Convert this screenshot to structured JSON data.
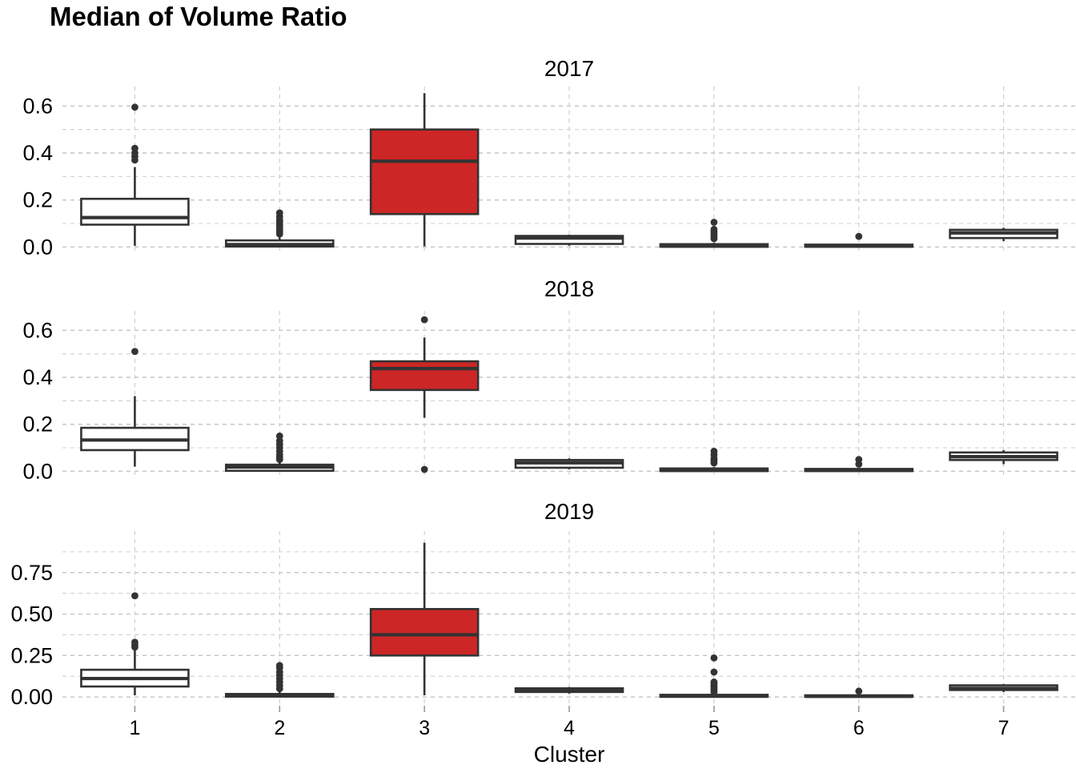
{
  "chart_data": {
    "type": "boxplot",
    "title": "Median of Volume Ratio",
    "xlabel": "Cluster",
    "ylabel": "",
    "categories": [
      "1",
      "2",
      "3",
      "4",
      "5",
      "6",
      "7"
    ],
    "facet_layout": "3 stacked panels (rows), shared x axis",
    "grid": "dashed major and minor gridlines, horizontal and vertical at cluster centers",
    "legend": "none",
    "highlight_category": "3",
    "colors": {
      "highlight_fill": "#CD2626",
      "default_fill": "#FFFFFF",
      "box_line": "#333333",
      "gridline_major": "#C3C3C3",
      "gridline_minor": "#CFCFCF",
      "axis_tick": "#999999",
      "text": "#000000"
    },
    "panels": [
      {
        "label": "2017",
        "y_tick_labels": [
          "0.0",
          "0.2",
          "0.4",
          "0.6"
        ],
        "y_tick_values": [
          0,
          0.2,
          0.4,
          0.6
        ],
        "y_minor_values": [
          0.1,
          0.3,
          0.5
        ],
        "ylim": [
          -0.033,
          0.683
        ],
        "boxes": [
          {
            "cluster": "1",
            "highlight": false,
            "low": 0.005,
            "q1": 0.095,
            "median": 0.125,
            "q3": 0.205,
            "high": 0.34,
            "outliers": [
              0.37,
              0.385,
              0.4,
              0.42,
              0.595
            ]
          },
          {
            "cluster": "2",
            "highlight": false,
            "low": 0.0,
            "q1": 0.002,
            "median": 0.01,
            "q3": 0.028,
            "high": 0.04,
            "outliers": [
              0.055,
              0.065,
              0.075,
              0.085,
              0.095,
              0.105,
              0.115,
              0.13,
              0.145
            ]
          },
          {
            "cluster": "3",
            "highlight": true,
            "low": 0.003,
            "q1": 0.14,
            "median": 0.365,
            "q3": 0.5,
            "high": 0.655,
            "outliers": []
          },
          {
            "cluster": "4",
            "highlight": false,
            "low": 0.005,
            "q1": 0.013,
            "median": 0.038,
            "q3": 0.047,
            "high": 0.052,
            "outliers": []
          },
          {
            "cluster": "5",
            "highlight": false,
            "low": 0.0,
            "q1": 0.001,
            "median": 0.004,
            "q3": 0.012,
            "high": 0.018,
            "outliers": [
              0.035,
              0.045,
              0.055,
              0.065,
              0.075,
              0.105
            ]
          },
          {
            "cluster": "6",
            "highlight": false,
            "low": 0.0,
            "q1": 0.001,
            "median": 0.004,
            "q3": 0.01,
            "high": 0.014,
            "outliers": [
              0.045
            ]
          },
          {
            "cluster": "7",
            "highlight": false,
            "low": 0.025,
            "q1": 0.038,
            "median": 0.06,
            "q3": 0.073,
            "high": 0.082,
            "outliers": []
          }
        ]
      },
      {
        "label": "2018",
        "y_tick_labels": [
          "0.0",
          "0.2",
          "0.4",
          "0.6"
        ],
        "y_tick_values": [
          0,
          0.2,
          0.4,
          0.6
        ],
        "y_minor_values": [
          0.1,
          0.3,
          0.5
        ],
        "ylim": [
          -0.033,
          0.683
        ],
        "boxes": [
          {
            "cluster": "1",
            "highlight": false,
            "low": 0.02,
            "q1": 0.09,
            "median": 0.133,
            "q3": 0.185,
            "high": 0.32,
            "outliers": [
              0.51
            ]
          },
          {
            "cluster": "2",
            "highlight": false,
            "low": 0.0,
            "q1": 0.002,
            "median": 0.018,
            "q3": 0.028,
            "high": 0.04,
            "outliers": [
              0.05,
              0.06,
              0.07,
              0.085,
              0.1,
              0.115,
              0.13,
              0.15
            ]
          },
          {
            "cluster": "3",
            "highlight": true,
            "low": 0.228,
            "q1": 0.346,
            "median": 0.437,
            "q3": 0.468,
            "high": 0.569,
            "outliers": [
              0.645,
              0.008
            ]
          },
          {
            "cluster": "4",
            "highlight": false,
            "low": 0.008,
            "q1": 0.015,
            "median": 0.036,
            "q3": 0.048,
            "high": 0.055,
            "outliers": []
          },
          {
            "cluster": "5",
            "highlight": false,
            "low": 0.0,
            "q1": 0.001,
            "median": 0.004,
            "q3": 0.012,
            "high": 0.018,
            "outliers": [
              0.035,
              0.045,
              0.055,
              0.07,
              0.085
            ]
          },
          {
            "cluster": "6",
            "highlight": false,
            "low": 0.0,
            "q1": 0.001,
            "median": 0.004,
            "q3": 0.01,
            "high": 0.014,
            "outliers": [
              0.03,
              0.05
            ]
          },
          {
            "cluster": "7",
            "highlight": false,
            "low": 0.03,
            "q1": 0.048,
            "median": 0.062,
            "q3": 0.08,
            "high": 0.09,
            "outliers": []
          }
        ]
      },
      {
        "label": "2019",
        "y_tick_labels": [
          "0.00",
          "0.25",
          "0.50",
          "0.75"
        ],
        "y_tick_values": [
          0,
          0.25,
          0.5,
          0.75
        ],
        "y_minor_values": [
          0.125,
          0.375,
          0.625,
          0.875
        ],
        "ylim": [
          -0.048,
          1.0
        ],
        "boxes": [
          {
            "cluster": "1",
            "highlight": false,
            "low": 0.01,
            "q1": 0.063,
            "median": 0.111,
            "q3": 0.164,
            "high": 0.28,
            "outliers": [
              0.3,
              0.315,
              0.33,
              0.61
            ]
          },
          {
            "cluster": "2",
            "highlight": false,
            "low": 0.0,
            "q1": 0.002,
            "median": 0.008,
            "q3": 0.018,
            "high": 0.03,
            "outliers": [
              0.05,
              0.07,
              0.09,
              0.11,
              0.13,
              0.15,
              0.175,
              0.19
            ]
          },
          {
            "cluster": "3",
            "highlight": true,
            "low": 0.01,
            "q1": 0.25,
            "median": 0.375,
            "q3": 0.53,
            "high": 0.93,
            "outliers": []
          },
          {
            "cluster": "4",
            "highlight": false,
            "low": 0.02,
            "q1": 0.03,
            "median": 0.04,
            "q3": 0.052,
            "high": 0.06,
            "outliers": []
          },
          {
            "cluster": "5",
            "highlight": false,
            "low": 0.0,
            "q1": 0.001,
            "median": 0.005,
            "q3": 0.013,
            "high": 0.02,
            "outliers": [
              0.03,
              0.04,
              0.05,
              0.06,
              0.07,
              0.08,
              0.09,
              0.15,
              0.235
            ]
          },
          {
            "cluster": "6",
            "highlight": false,
            "low": 0.0,
            "q1": 0.001,
            "median": 0.004,
            "q3": 0.01,
            "high": 0.014,
            "outliers": [
              0.035
            ]
          },
          {
            "cluster": "7",
            "highlight": false,
            "low": 0.03,
            "q1": 0.042,
            "median": 0.052,
            "q3": 0.07,
            "high": 0.078,
            "outliers": []
          }
        ]
      }
    ]
  }
}
